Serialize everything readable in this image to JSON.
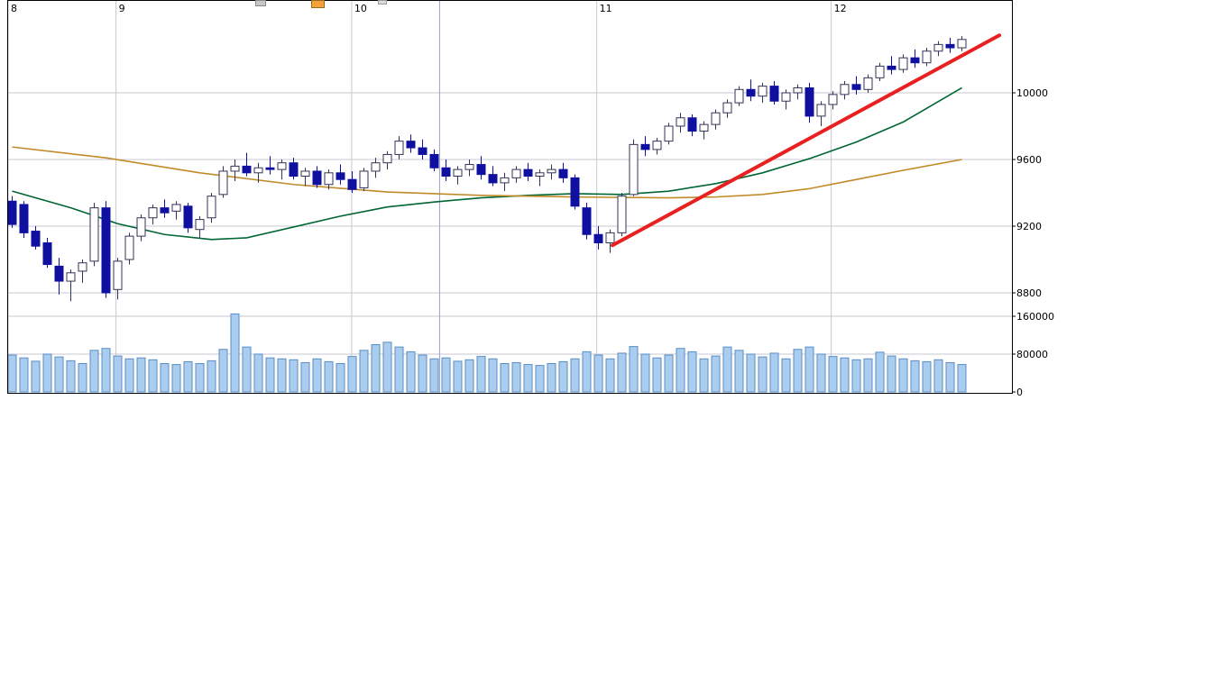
{
  "window": {
    "background": "#ffffff"
  },
  "toolbar_fragments": [
    {
      "name": "toolbar-fragment-1",
      "color": "#c8c8c8",
      "border": "#8a8a8a"
    },
    {
      "name": "toolbar-fragment-2",
      "color": "#f2a33c",
      "border": "#9a6a1a"
    },
    {
      "name": "toolbar-fragment-3",
      "color": "#d9d9d9",
      "border": "#9a9a9a"
    }
  ],
  "colors": {
    "grid": "#c9c9d2",
    "marker_line": "#9aa0c8",
    "plot_border": "#000000",
    "candle_down": "#1010a0",
    "candle_up_fill": "#ffffff",
    "candle_up_stroke": "#333355",
    "volume_fill": "#aaccee",
    "volume_stroke": "#5b8ec4",
    "ma_short": "#006633",
    "ma_long": "#c08a28",
    "trendline": "#e82020",
    "axis_text": "#000000"
  },
  "axes": {
    "price_ticks": [
      10000,
      9600,
      9200,
      8800
    ],
    "volume_ticks": [
      160000,
      80000,
      0
    ],
    "month_ticks": [
      {
        "label": "8",
        "i": 0
      },
      {
        "label": "9",
        "i": 9.2
      },
      {
        "label": "10",
        "i": 29.3
      },
      {
        "label": "11",
        "i": 50.2
      },
      {
        "label": "12",
        "i": 70.2
      }
    ],
    "marker_line_i": 36.8
  },
  "chart_data": {
    "type": "candlestick",
    "title": "",
    "description": "Daily candlestick chart with volume pane, months 8 through 12, with short and long moving averages and a red upward trend line. Candles are [open, high, low, close, volume].",
    "x_unit": "trading day",
    "months": [
      "8",
      "9",
      "10",
      "11",
      "12"
    ],
    "price_axis": {
      "ticks": [
        10000,
        9600,
        9200,
        8800
      ],
      "visible_range": [
        8719,
        10513
      ]
    },
    "volume_axis": {
      "ticks": [
        160000,
        80000,
        0
      ],
      "range": [
        0,
        168000
      ]
    },
    "legend_position": "none",
    "grid": true,
    "candles": [
      [
        9350,
        9380,
        9190,
        9210,
        78000
      ],
      [
        9330,
        9350,
        9130,
        9160,
        72000
      ],
      [
        9170,
        9200,
        9060,
        9080,
        65000
      ],
      [
        9100,
        9130,
        8950,
        8970,
        80000
      ],
      [
        8960,
        9010,
        8790,
        8870,
        74000
      ],
      [
        8870,
        8940,
        8750,
        8920,
        66000
      ],
      [
        8930,
        9000,
        8860,
        8980,
        60000
      ],
      [
        8990,
        9340,
        8960,
        9310,
        88000
      ],
      [
        9310,
        9350,
        8770,
        8800,
        92000
      ],
      [
        8820,
        9010,
        8760,
        8990,
        76000
      ],
      [
        9000,
        9160,
        8970,
        9140,
        70000
      ],
      [
        9140,
        9270,
        9110,
        9250,
        72000
      ],
      [
        9250,
        9330,
        9210,
        9310,
        68000
      ],
      [
        9310,
        9360,
        9250,
        9280,
        60000
      ],
      [
        9290,
        9350,
        9240,
        9330,
        58000
      ],
      [
        9320,
        9340,
        9160,
        9190,
        64000
      ],
      [
        9180,
        9260,
        9130,
        9240,
        60000
      ],
      [
        9250,
        9400,
        9220,
        9380,
        66000
      ],
      [
        9390,
        9560,
        9370,
        9530,
        90000
      ],
      [
        9530,
        9600,
        9470,
        9560,
        165000
      ],
      [
        9560,
        9640,
        9500,
        9520,
        95000
      ],
      [
        9520,
        9580,
        9460,
        9550,
        80000
      ],
      [
        9550,
        9620,
        9510,
        9540,
        72000
      ],
      [
        9540,
        9600,
        9480,
        9580,
        70000
      ],
      [
        9580,
        9610,
        9480,
        9500,
        68000
      ],
      [
        9500,
        9550,
        9440,
        9530,
        62000
      ],
      [
        9530,
        9560,
        9430,
        9450,
        70000
      ],
      [
        9450,
        9540,
        9420,
        9520,
        64000
      ],
      [
        9520,
        9570,
        9450,
        9480,
        60000
      ],
      [
        9480,
        9530,
        9400,
        9420,
        75000
      ],
      [
        9430,
        9550,
        9410,
        9530,
        88000
      ],
      [
        9530,
        9610,
        9490,
        9580,
        100000
      ],
      [
        9580,
        9650,
        9540,
        9630,
        105000
      ],
      [
        9630,
        9740,
        9600,
        9710,
        95000
      ],
      [
        9710,
        9750,
        9640,
        9670,
        85000
      ],
      [
        9670,
        9720,
        9600,
        9630,
        78000
      ],
      [
        9630,
        9660,
        9530,
        9550,
        70000
      ],
      [
        9550,
        9600,
        9470,
        9500,
        72000
      ],
      [
        9500,
        9560,
        9450,
        9540,
        65000
      ],
      [
        9540,
        9600,
        9500,
        9570,
        68000
      ],
      [
        9570,
        9620,
        9480,
        9510,
        75000
      ],
      [
        9510,
        9560,
        9440,
        9460,
        70000
      ],
      [
        9460,
        9520,
        9410,
        9490,
        60000
      ],
      [
        9490,
        9560,
        9460,
        9540,
        62000
      ],
      [
        9540,
        9580,
        9470,
        9500,
        58000
      ],
      [
        9500,
        9540,
        9440,
        9520,
        56000
      ],
      [
        9520,
        9570,
        9480,
        9540,
        60000
      ],
      [
        9540,
        9580,
        9460,
        9490,
        64000
      ],
      [
        9490,
        9510,
        9300,
        9320,
        70000
      ],
      [
        9310,
        9340,
        9120,
        9150,
        85000
      ],
      [
        9150,
        9200,
        9060,
        9100,
        78000
      ],
      [
        9100,
        9180,
        9040,
        9160,
        70000
      ],
      [
        9160,
        9400,
        9140,
        9380,
        82000
      ],
      [
        9390,
        9720,
        9380,
        9690,
        96000
      ],
      [
        9690,
        9740,
        9620,
        9660,
        80000
      ],
      [
        9660,
        9730,
        9630,
        9710,
        72000
      ],
      [
        9710,
        9820,
        9690,
        9800,
        78000
      ],
      [
        9800,
        9880,
        9760,
        9850,
        92000
      ],
      [
        9850,
        9870,
        9740,
        9770,
        85000
      ],
      [
        9770,
        9830,
        9720,
        9810,
        70000
      ],
      [
        9810,
        9900,
        9780,
        9880,
        76000
      ],
      [
        9880,
        9960,
        9850,
        9940,
        95000
      ],
      [
        9940,
        10040,
        9920,
        10020,
        88000
      ],
      [
        10020,
        10080,
        9950,
        9980,
        80000
      ],
      [
        9980,
        10060,
        9940,
        10040,
        74000
      ],
      [
        10040,
        10070,
        9930,
        9950,
        82000
      ],
      [
        9950,
        10020,
        9900,
        10000,
        70000
      ],
      [
        10000,
        10050,
        9960,
        10030,
        90000
      ],
      [
        10030,
        10060,
        9820,
        9860,
        95000
      ],
      [
        9860,
        9950,
        9800,
        9930,
        80000
      ],
      [
        9930,
        10010,
        9900,
        9990,
        75000
      ],
      [
        9990,
        10070,
        9960,
        10050,
        72000
      ],
      [
        10050,
        10100,
        9990,
        10020,
        68000
      ],
      [
        10020,
        10110,
        10000,
        10090,
        70000
      ],
      [
        10090,
        10180,
        10070,
        10160,
        84000
      ],
      [
        10160,
        10220,
        10110,
        10140,
        76000
      ],
      [
        10140,
        10230,
        10120,
        10210,
        70000
      ],
      [
        10210,
        10260,
        10150,
        10180,
        66000
      ],
      [
        10180,
        10270,
        10160,
        10250,
        64000
      ],
      [
        10250,
        10310,
        10220,
        10290,
        68000
      ],
      [
        10290,
        10330,
        10240,
        10270,
        62000
      ],
      [
        10270,
        10340,
        10250,
        10320,
        58000
      ]
    ],
    "ma_short_points": [
      [
        0,
        9410
      ],
      [
        5,
        9310
      ],
      [
        9,
        9215
      ],
      [
        13,
        9150
      ],
      [
        17,
        9120
      ],
      [
        20,
        9130
      ],
      [
        24,
        9195
      ],
      [
        28,
        9260
      ],
      [
        32,
        9315
      ],
      [
        36,
        9345
      ],
      [
        40,
        9370
      ],
      [
        44,
        9385
      ],
      [
        48,
        9395
      ],
      [
        52,
        9390
      ],
      [
        56,
        9410
      ],
      [
        60,
        9455
      ],
      [
        64,
        9520
      ],
      [
        68,
        9605
      ],
      [
        72,
        9705
      ],
      [
        76,
        9825
      ],
      [
        81,
        10030
      ]
    ],
    "ma_long_points": [
      [
        0,
        9675
      ],
      [
        8,
        9610
      ],
      [
        16,
        9520
      ],
      [
        24,
        9450
      ],
      [
        32,
        9405
      ],
      [
        40,
        9385
      ],
      [
        48,
        9375
      ],
      [
        56,
        9370
      ],
      [
        60,
        9375
      ],
      [
        64,
        9390
      ],
      [
        68,
        9425
      ],
      [
        72,
        9480
      ],
      [
        76,
        9535
      ],
      [
        81,
        9600
      ]
    ],
    "trendline": {
      "from_index": 51.2,
      "from_price": 9085,
      "to_index": 84.2,
      "to_price": 10345,
      "color": "#e82020",
      "width": 4
    }
  }
}
